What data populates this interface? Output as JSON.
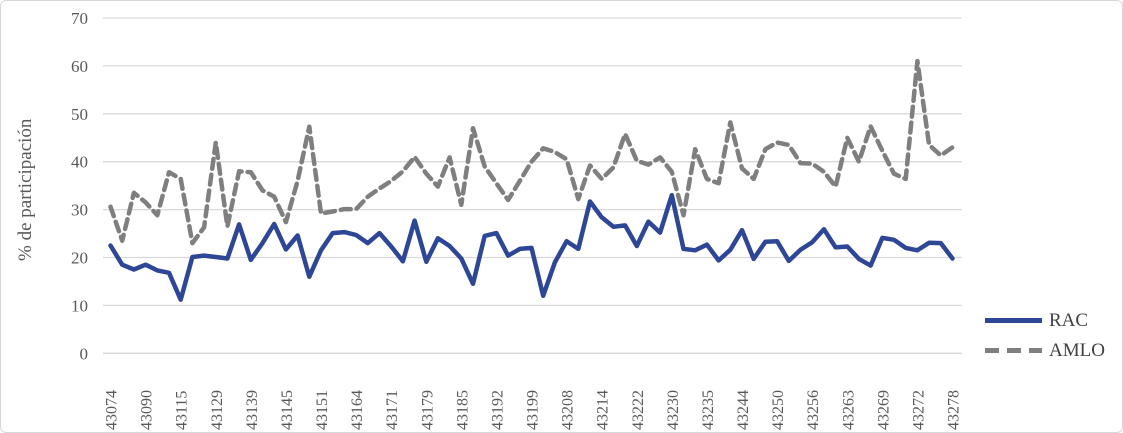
{
  "chart_data": {
    "type": "line",
    "title": "",
    "xlabel": "",
    "ylabel": "% de participación",
    "ylim": [
      0,
      70
    ],
    "yticks": [
      0,
      10,
      20,
      30,
      40,
      50,
      60,
      70
    ],
    "grid": "horizontal",
    "legend_position": "right",
    "x_tick_labels": [
      "43074",
      "43090",
      "43115",
      "43129",
      "43139",
      "43145",
      "43151",
      "43164",
      "43171",
      "43179",
      "43185",
      "43192",
      "43199",
      "43208",
      "43214",
      "43222",
      "43230",
      "43235",
      "43244",
      "43250",
      "43256",
      "43263",
      "43269",
      "43272",
      "43278"
    ],
    "x_tick_interval": 3,
    "n_points": 73,
    "series": [
      {
        "name": "RAC",
        "style": "solid",
        "color": "#2e4696",
        "values": [
          22.5,
          18.5,
          17.5,
          18.5,
          17.3,
          16.8,
          11.2,
          20.1,
          20.4,
          20.1,
          19.8,
          26.9,
          19.5,
          23,
          27,
          21.7,
          24.6,
          16,
          21.5,
          25.1,
          25.3,
          24.7,
          23,
          25.1,
          22.3,
          19.2,
          27.7,
          19.1,
          24,
          22.4,
          19.8,
          14.5,
          24.5,
          25.1,
          20.4,
          21.8,
          22,
          12,
          19,
          23.4,
          21.8,
          31.7,
          28.4,
          26.4,
          26.7,
          22.4,
          27.5,
          25.2,
          33,
          21.8,
          21.5,
          22.7,
          19.4,
          21.6,
          25.7,
          19.7,
          23.3,
          23.4,
          19.3,
          21.6,
          23.2,
          25.9,
          22.1,
          22.3,
          19.7,
          18.3,
          24.1,
          23.7,
          22,
          21.5,
          23.1,
          23,
          19.8
        ]
      },
      {
        "name": "AMLO",
        "style": "dashed",
        "color": "#7f7f7f",
        "values": [
          30.6,
          23.5,
          33.5,
          31.5,
          28.8,
          37.8,
          36.4,
          23,
          26.3,
          44,
          26.5,
          38,
          37.8,
          34,
          32.7,
          27.4,
          36,
          47.3,
          29.2,
          29.6,
          30.1,
          30.1,
          32.7,
          34.4,
          36,
          38,
          41,
          37.5,
          34.8,
          40.9,
          31,
          47,
          39,
          35.5,
          32,
          36,
          40,
          42.8,
          42,
          40.5,
          32.2,
          39.2,
          36.4,
          38.8,
          45.8,
          40.2,
          39.4,
          40.9,
          37.9,
          28.8,
          42.6,
          36.4,
          35.5,
          48.2,
          38.6,
          36.4,
          42.6,
          44,
          43.5,
          39.7,
          39.6,
          37.9,
          34.8,
          45,
          40,
          47.4,
          42.3,
          37.5,
          36.4,
          61,
          43.5,
          41.3,
          43
        ]
      }
    ],
    "colors": {
      "gridline": "#d9d9d9",
      "tick_text": "#595959",
      "legend_text": "#404040"
    }
  }
}
